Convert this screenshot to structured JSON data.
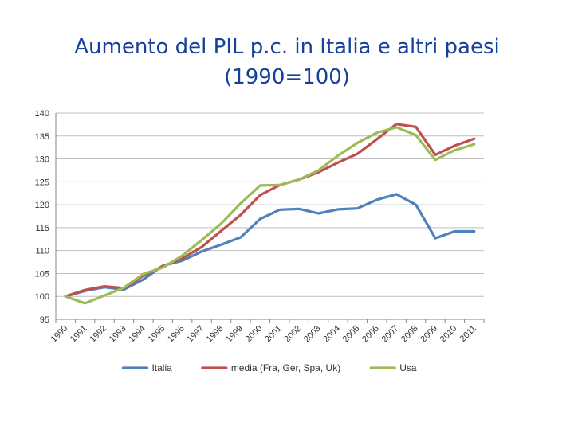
{
  "title": {
    "line1": "Aumento del PIL p.c. in Italia e altri paesi",
    "line2": "(1990=100)"
  },
  "chart_data": {
    "type": "line",
    "x": [
      "1990",
      "1991",
      "1992",
      "1993",
      "1994",
      "1995",
      "1996",
      "1997",
      "1998",
      "1999",
      "2000",
      "2001",
      "2002",
      "2003",
      "2004",
      "2005",
      "2006",
      "2007",
      "2008",
      "2009",
      "2010",
      "2011"
    ],
    "ylim": [
      95,
      140
    ],
    "yticks": [
      95,
      100,
      105,
      110,
      115,
      120,
      125,
      130,
      135,
      140
    ],
    "grid": true,
    "legend_position": "bottom",
    "series": [
      {
        "name": "Italia",
        "color": "#4f81bd",
        "values": [
          100,
          101.2,
          102,
          101.5,
          103.7,
          106.7,
          107.8,
          109.8,
          111.3,
          112.9,
          116.9,
          118.9,
          119.1,
          118.1,
          119,
          119.2,
          121.1,
          122.3,
          120,
          112.7,
          114.2,
          114.2
        ]
      },
      {
        "name": "media (Fra, Ger, Spa, Uk)",
        "color": "#c0504d",
        "values": [
          100,
          101.4,
          102.2,
          101.8,
          104.5,
          106.6,
          108.3,
          110.8,
          114.3,
          117.8,
          122.1,
          124.3,
          125.5,
          127.1,
          129.2,
          131.1,
          134.3,
          137.6,
          137,
          130.9,
          132.9,
          134.4
        ]
      },
      {
        "name": "Usa",
        "color": "#9bbb59",
        "values": [
          100,
          98.5,
          100.2,
          101.9,
          104.9,
          106.3,
          108.9,
          112.3,
          115.9,
          120.3,
          124.2,
          124.3,
          125.5,
          127.5,
          130.7,
          133.5,
          135.7,
          136.9,
          135.2,
          129.8,
          131.9,
          133.2
        ]
      }
    ]
  }
}
